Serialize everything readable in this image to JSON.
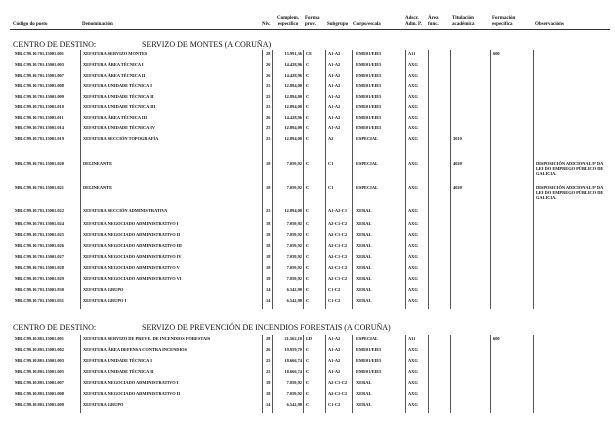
{
  "columns": {
    "codigo": "Código do posto",
    "denominacion": "Denominación",
    "nivel": "Nív.",
    "complemento": "Complem. específico",
    "forma": "Forma prov.",
    "subgrupo": "Subgrupo",
    "corpo": "Corpo/escala",
    "adscr": "Adscr. Adm. P.",
    "area": "Área func.",
    "titulacion": "Titulación académica",
    "formacion": "Formación específica",
    "observacions": "Observacións"
  },
  "sections": [
    {
      "label": "CENTRO DE DESTINO:",
      "name": "SERVIZO DE MONTES (A CORUÑA)",
      "rows": [
        [
          "MR.C99.10.701.15001.001",
          "XEFATURA SERVIZO MONTES",
          "28",
          "15.991,36",
          "CE",
          "A1-A2",
          "EME01/EIE5",
          "A11",
          "",
          "",
          "600",
          ""
        ],
        [
          "MR.C99.10.701.15001.003",
          "XEFATURA ÁREA TÉCNICA I",
          "26",
          "14.428,96",
          "C",
          "A1-A2",
          "EME01/EIE5",
          "AXG",
          "",
          "",
          "",
          ""
        ],
        [
          "MR.C99.10.701.15001.007",
          "XEFATURA ÁREA TÉCNICA II",
          "26",
          "14.428,96",
          "C",
          "A1-A2",
          "EME01/EIE5",
          "AXG",
          "",
          "",
          "",
          ""
        ],
        [
          "MR.C99.10.701.15001.008",
          "XEFATURA UNIDADE TÉCNICA I",
          "25",
          "12.894,00",
          "C",
          "A1-A2",
          "EME01/EIE5",
          "AXG",
          "",
          "",
          "",
          ""
        ],
        [
          "MR.C99.10.701.15001.009",
          "XEFATURA UNIDADE TÉCNICA II",
          "25",
          "12.894,00",
          "C",
          "A1-A2",
          "EME01/EIE5",
          "AXG",
          "",
          "",
          "",
          ""
        ],
        [
          "MR.C99.10.701.15001.010",
          "XEFATURA UNIDADE TÉCNICA III",
          "25",
          "12.894,00",
          "C",
          "A1-A2",
          "EME01/EIE5",
          "AXG",
          "",
          "",
          "",
          ""
        ],
        [
          "MR.C99.10.701.15001.011",
          "XEFATURA ÁREA TÉCNICA III",
          "26",
          "14.428,96",
          "C",
          "A1-A2",
          "EME01/EIE5",
          "AXG",
          "",
          "",
          "",
          ""
        ],
        [
          "MR.C99.10.701.15001.014",
          "XEFATURA UNIDADE TÉCNICA IV",
          "25",
          "12.894,00",
          "C",
          "A1-A2",
          "EME01/EIE5",
          "AXG",
          "",
          "",
          "",
          ""
        ],
        [
          "MR.C99.10.701.15001.019",
          "XEFATURA SECCIÓN TOPOGRAFÍA",
          "25",
          "12.894,00",
          "C",
          "A2",
          "ESPECIAL",
          "AXG",
          "",
          "3010",
          "",
          ""
        ],
        [
          "MR.C99.10.701.15001.020",
          "DELINEANTE",
          "18",
          "7.059,92",
          "C",
          "C1",
          "ESPECIAL",
          "AXG",
          "",
          "4020",
          "",
          "DISPOSICIÓN ADICIONAL 9ª DA LEI DO EMPREGO PÚBLICO DE GALICIA."
        ],
        [
          "MR.C99.10.701.15001.021",
          "DELINEANTE",
          "18",
          "7.059,92",
          "C",
          "C1",
          "ESPECIAL",
          "AXG",
          "",
          "4020",
          "",
          "DISPOSICIÓN ADICIONAL 9ª DA LEI DO EMPREGO PÚBLICO DE GALICIA."
        ],
        [
          "MR.C99.10.701.15001.022",
          "XEFATURA SECCIÓN ADMINISTRATIVA",
          "25",
          "12.894,00",
          "C",
          "A1-A2-C1",
          "XERAL",
          "AXG",
          "",
          "",
          "",
          ""
        ],
        [
          "MR.C99.10.701.15001.024",
          "XEFATURA NEGOCIADO ADMINISTRATIVO I",
          "18",
          "7.059,92",
          "C",
          "A2-C1-C2",
          "XERAL",
          "AXG",
          "",
          "",
          "",
          ""
        ],
        [
          "MR.C99.10.701.15001.025",
          "XEFATURA NEGOCIADO ADMINISTRATIVO II",
          "18",
          "7.059,92",
          "C",
          "A2-C1-C2",
          "XERAL",
          "AXG",
          "",
          "",
          "",
          ""
        ],
        [
          "MR.C99.10.701.15001.026",
          "XEFATURA NEGOCIADO ADMINISTRATIVO III",
          "18",
          "7.059,92",
          "C",
          "A2-C1-C2",
          "XERAL",
          "AXG",
          "",
          "",
          "",
          ""
        ],
        [
          "MR.C99.10.701.15001.027",
          "XEFATURA NEGOCIADO ADMINISTRATIVO IV",
          "18",
          "7.059,92",
          "C",
          "A2-C1-C2",
          "XERAL",
          "AXG",
          "",
          "",
          "",
          ""
        ],
        [
          "MR.C99.10.701.15001.028",
          "XEFATURA NEGOCIADO ADMINISTRATIVO V",
          "18",
          "7.059,92",
          "C",
          "A2-C1-C2",
          "XERAL",
          "AXG",
          "",
          "",
          "",
          ""
        ],
        [
          "MR.C99.10.701.15001.029",
          "XEFATURA NEGOCIADO ADMINISTRATIVO VI",
          "18",
          "7.059,92",
          "C",
          "A2-C1-C2",
          "XERAL",
          "AXG",
          "",
          "",
          "",
          ""
        ],
        [
          "MR.C99.10.701.15001.030",
          "XEFATURA GRUPO",
          "14",
          "6.542,90",
          "C",
          "C1-C2",
          "XERAL",
          "AXG",
          "",
          "",
          "",
          ""
        ],
        [
          "MR.C99.10.701.15001.031",
          "XEFATURA GRUPO I",
          "14",
          "6.542,90",
          "C",
          "C1-C2",
          "XERAL",
          "AXG",
          "",
          "",
          "",
          ""
        ]
      ]
    },
    {
      "label": "CENTRO DE DESTINO:",
      "name": "SERVIZO DE PREVENCIÓN DE INCENDIOS FORESTAIS (A CORUÑA)",
      "rows": [
        [
          "MR.C99.10.801.15001.001",
          "XEFATURA SERVIZO DE PREVE. DE INCENDIOS FORESTAIS",
          "28",
          "21.562,10",
          "LD",
          "A1-A2",
          "ESPECIAL",
          "A11",
          "",
          "",
          "600",
          ""
        ],
        [
          "MR.C99.10.801.15001.002",
          "XEFATURA ÁREA DEFENSA CONTRA INCENDIOS",
          "26",
          "19.959,70",
          "C",
          "A1-A2",
          "EME01/EIE5",
          "AXG",
          "",
          "",
          "",
          ""
        ],
        [
          "MR.C99.10.801.15001.003",
          "XEFATURA UNIDADE TÉCNICA I",
          "25",
          "18.666,74",
          "C",
          "A1-A2",
          "EME01/EIE5",
          "AXG",
          "",
          "",
          "",
          ""
        ],
        [
          "MR.C99.10.801.15001.005",
          "XEFATURA UNIDADE TÉCNICA II",
          "25",
          "18.666,74",
          "C",
          "A1-A2",
          "EME01/EIE5",
          "AXG",
          "",
          "",
          "",
          ""
        ],
        [
          "MR.C99.10.801.15001.007",
          "XEFATURA NEGOCIADO ADMINISTRATIVO I",
          "18",
          "7.059,92",
          "C",
          "A2-C1-C2",
          "XERAL",
          "AXG",
          "",
          "",
          "",
          ""
        ],
        [
          "MR.C99.10.801.15001.008",
          "XEFATURA NEGOCIADO ADMINISTRATIVO II",
          "18",
          "7.059,92",
          "C",
          "A2-C1-C2",
          "XERAL",
          "AXG",
          "",
          "",
          "",
          ""
        ],
        [
          "MR.C99.10.801.15001.009",
          "XEFATURA GRUPO",
          "14",
          "6.542,90",
          "C",
          "C1-C2",
          "XERAL",
          "AXG",
          "",
          "",
          "",
          ""
        ]
      ]
    }
  ]
}
